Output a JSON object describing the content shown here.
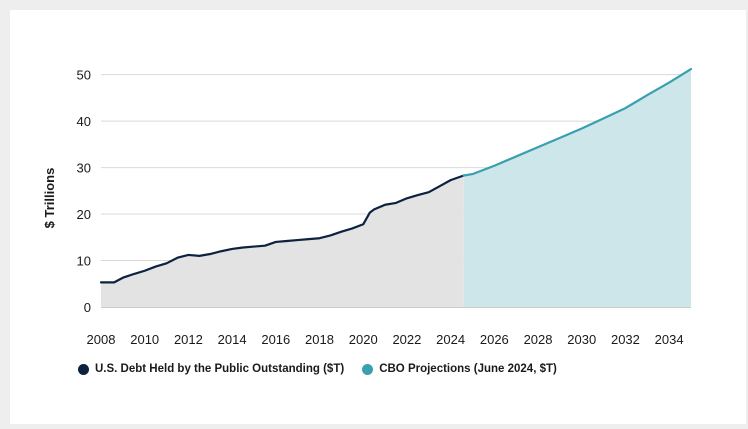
{
  "chart_data": {
    "type": "area",
    "ylabel": "$ Trillions",
    "xlabel": "",
    "xlim": [
      2008,
      2035
    ],
    "ylim": [
      0,
      51
    ],
    "x_ticks": [
      "2008",
      "2010",
      "2012",
      "2014",
      "2016",
      "2018",
      "2020",
      "2022",
      "2024",
      "2026",
      "2028",
      "2030",
      "2032",
      "2034"
    ],
    "y_ticks": [
      "0",
      "10",
      "20",
      "30",
      "40",
      "50"
    ],
    "grid": "horizontal",
    "legend_position": "bottom-left",
    "series": [
      {
        "name": "U.S. Debt Held by the Public Outstanding ($T)",
        "color": "#0d2240",
        "fill": "#e3e3e3",
        "x": [
          2008,
          2008.6,
          2009,
          2009.5,
          2010,
          2010.5,
          2011,
          2011.5,
          2012,
          2012.5,
          2013,
          2013.5,
          2014,
          2014.5,
          2015,
          2015.5,
          2016,
          2016.5,
          2017,
          2017.5,
          2018,
          2018.5,
          2019,
          2019.5,
          2020,
          2020.3,
          2020.5,
          2021,
          2021.5,
          2022,
          2022.5,
          2023,
          2023.5,
          2024,
          2024.6
        ],
        "y": [
          5.3,
          5.3,
          6.3,
          7.1,
          7.8,
          8.7,
          9.4,
          10.6,
          11.2,
          11.0,
          11.4,
          12.0,
          12.5,
          12.8,
          13.0,
          13.2,
          14.0,
          14.2,
          14.4,
          14.6,
          14.8,
          15.4,
          16.2,
          16.9,
          17.8,
          20.3,
          21.0,
          22.0,
          22.4,
          23.4,
          24.1,
          24.7,
          26.0,
          27.3,
          28.3
        ]
      },
      {
        "name": "CBO Projections (June 2024, $T)",
        "color": "#3a9fb0",
        "fill": "#cde6ea",
        "x": [
          2024.6,
          2025,
          2026,
          2027,
          2028,
          2029,
          2030,
          2031,
          2032,
          2033,
          2034,
          2035
        ],
        "y": [
          28.3,
          28.6,
          30.4,
          32.4,
          34.4,
          36.4,
          38.4,
          40.6,
          42.8,
          45.6,
          48.3,
          51.2
        ]
      }
    ]
  }
}
